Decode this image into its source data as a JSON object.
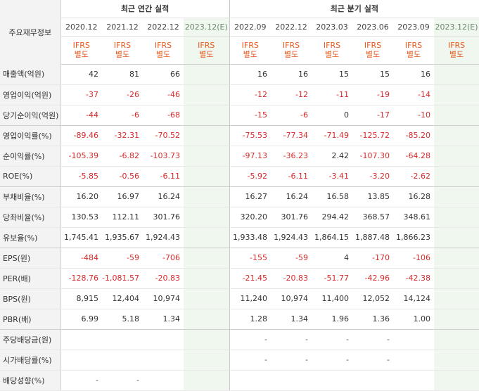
{
  "header": {
    "row_label": "주요재무정보",
    "annual_title": "최근 연간 실적",
    "quarterly_title": "최근 분기 실적"
  },
  "annual_periods": [
    "2020.12",
    "2021.12",
    "2022.12",
    "2023.12(E)"
  ],
  "quarterly_periods": [
    "2022.09",
    "2022.12",
    "2023.03",
    "2023.06",
    "2023.09",
    "2023.12(E)"
  ],
  "standard": {
    "line1": "IFRS",
    "line2": "별도"
  },
  "rows": [
    {
      "label": "매출액(억원)",
      "annual": [
        "42",
        "81",
        "66",
        ""
      ],
      "quarterly": [
        "16",
        "16",
        "15",
        "15",
        "16",
        ""
      ]
    },
    {
      "label": "영업이익(억원)",
      "annual": [
        "-37",
        "-26",
        "-46",
        ""
      ],
      "quarterly": [
        "-12",
        "-12",
        "-11",
        "-19",
        "-14",
        ""
      ]
    },
    {
      "label": "당기순이익(억원)",
      "annual": [
        "-44",
        "-6",
        "-68",
        ""
      ],
      "quarterly": [
        "-15",
        "-6",
        "0",
        "-17",
        "-10",
        ""
      ]
    },
    {
      "label": "영업이익률(%)",
      "annual": [
        "-89.46",
        "-32.31",
        "-70.52",
        ""
      ],
      "quarterly": [
        "-75.53",
        "-77.34",
        "-71.49",
        "-125.72",
        "-85.20",
        ""
      ]
    },
    {
      "label": "순이익률(%)",
      "annual": [
        "-105.39",
        "-6.82",
        "-103.73",
        ""
      ],
      "quarterly": [
        "-97.13",
        "-36.23",
        "2.42",
        "-107.30",
        "-64.28",
        ""
      ]
    },
    {
      "label": "ROE(%)",
      "annual": [
        "-5.85",
        "-0.56",
        "-6.11",
        ""
      ],
      "quarterly": [
        "-5.92",
        "-6.11",
        "-3.41",
        "-3.20",
        "-2.62",
        ""
      ]
    },
    {
      "label": "부채비율(%)",
      "annual": [
        "16.20",
        "16.97",
        "16.24",
        ""
      ],
      "quarterly": [
        "16.27",
        "16.24",
        "16.58",
        "13.85",
        "16.28",
        ""
      ]
    },
    {
      "label": "당좌비율(%)",
      "annual": [
        "130.53",
        "112.11",
        "301.76",
        ""
      ],
      "quarterly": [
        "320.20",
        "301.76",
        "294.42",
        "368.57",
        "348.61",
        ""
      ]
    },
    {
      "label": "유보율(%)",
      "annual": [
        "1,745.41",
        "1,935.67",
        "1,924.43",
        ""
      ],
      "quarterly": [
        "1,933.48",
        "1,924.43",
        "1,864.15",
        "1,887.48",
        "1,866.23",
        ""
      ]
    },
    {
      "label": "EPS(원)",
      "annual": [
        "-484",
        "-59",
        "-706",
        ""
      ],
      "quarterly": [
        "-155",
        "-59",
        "4",
        "-170",
        "-106",
        ""
      ]
    },
    {
      "label": "PER(배)",
      "annual": [
        "-128.76",
        "-1,081.57",
        "-20.83",
        ""
      ],
      "quarterly": [
        "-21.45",
        "-20.83",
        "-51.77",
        "-42.96",
        "-42.38",
        ""
      ]
    },
    {
      "label": "BPS(원)",
      "annual": [
        "8,915",
        "12,404",
        "10,974",
        ""
      ],
      "quarterly": [
        "11,240",
        "10,974",
        "11,400",
        "12,052",
        "14,124",
        ""
      ]
    },
    {
      "label": "PBR(배)",
      "annual": [
        "6.99",
        "5.18",
        "1.34",
        ""
      ],
      "quarterly": [
        "1.28",
        "1.34",
        "1.96",
        "1.36",
        "1.00",
        ""
      ]
    },
    {
      "label": "주당배당금(원)",
      "annual": [
        "",
        "",
        "",
        ""
      ],
      "quarterly": [
        "-",
        "-",
        "-",
        "-",
        "",
        ""
      ]
    },
    {
      "label": "시가배당률(%)",
      "annual": [
        "",
        "",
        "",
        ""
      ],
      "quarterly": [
        "-",
        "-",
        "-",
        "-",
        "",
        ""
      ]
    },
    {
      "label": "배당성향(%)",
      "annual": [
        "-",
        "-",
        "",
        ""
      ],
      "quarterly": [
        "",
        "",
        "",
        "",
        "",
        ""
      ]
    }
  ],
  "colors": {
    "negative": "#d62a2a",
    "ifrs": "#e8591c",
    "estimate_bg": "#f0f7ef"
  }
}
